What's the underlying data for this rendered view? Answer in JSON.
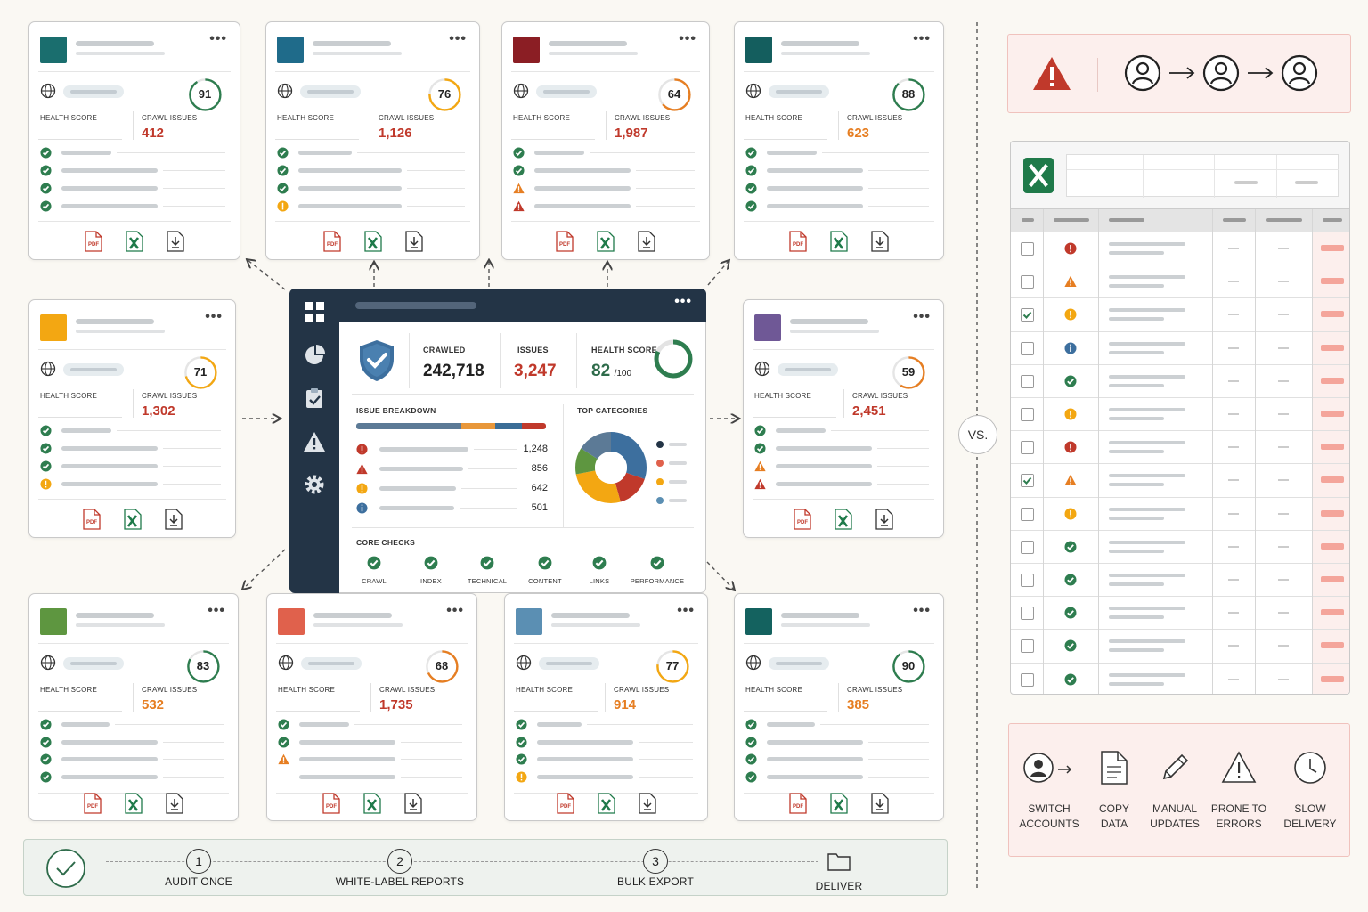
{
  "colors": {
    "green": "#2e7d4f",
    "red": "#c0392b",
    "orange": "#e67e22",
    "yellow": "#f3a712",
    "blue": "#3d6f9e",
    "navy": "#233446"
  },
  "project_cards": [
    {
      "logo_color": "#1a6e6e",
      "score": 91,
      "score_label": "HEALTH SCORE",
      "issues_label": "CRAWL ISSUES",
      "issues": "412",
      "issues_color": "#c0392b",
      "status": [
        "ok",
        "ok",
        "ok",
        "ok"
      ]
    },
    {
      "logo_color": "#1f6b8a",
      "score": 76,
      "score_label": "HEALTH SCORE",
      "issues_label": "CRAWL ISSUES",
      "issues": "1,126",
      "issues_color": "#c0392b",
      "status": [
        "ok",
        "ok",
        "ok",
        "info"
      ]
    },
    {
      "logo_color": "#8b1e24",
      "score": 64,
      "score_label": "HEALTH SCORE",
      "issues_label": "CRAWL ISSUES",
      "issues": "1,987",
      "issues_color": "#c0392b",
      "status": [
        "ok",
        "ok",
        "warn",
        "err"
      ]
    },
    {
      "logo_color": "#145e5e",
      "score": 88,
      "score_label": "HEALTH SCORE",
      "issues_label": "CRAWL ISSUES",
      "issues": "623",
      "issues_color": "#e67e22",
      "status": [
        "ok",
        "ok",
        "ok",
        "ok"
      ]
    },
    {
      "logo_color": "#f3a712",
      "score": 71,
      "score_label": "HEALTH SCORE",
      "issues_label": "CRAWL ISSUES",
      "issues": "1,302",
      "issues_color": "#c0392b",
      "status": [
        "ok",
        "ok",
        "ok",
        "info"
      ]
    },
    {
      "logo_color": "#6f5896",
      "score": 59,
      "score_label": "HEALTH SCORE",
      "issues_label": "CRAWL ISSUES",
      "issues": "2,451",
      "issues_color": "#c0392b",
      "status": [
        "ok",
        "ok",
        "warn",
        "err"
      ]
    },
    {
      "logo_color": "#5e9640",
      "score": 83,
      "score_label": "HEALTH SCORE",
      "issues_label": "CRAWL ISSUES",
      "issues": "532",
      "issues_color": "#e67e22",
      "status": [
        "ok",
        "ok",
        "ok",
        "ok"
      ]
    },
    {
      "logo_color": "#e0614c",
      "score": 68,
      "score_label": "HEALTH SCORE",
      "issues_label": "CRAWL ISSUES",
      "issues": "1,735",
      "issues_color": "#c0392b",
      "status": [
        "ok",
        "ok",
        "warn",
        "none"
      ]
    },
    {
      "logo_color": "#5b8fb3",
      "score": 77,
      "score_label": "HEALTH SCORE",
      "issues_label": "CRAWL ISSUES",
      "issues": "914",
      "issues_color": "#e67e22",
      "status": [
        "ok",
        "ok",
        "ok",
        "info"
      ]
    },
    {
      "logo_color": "#14625f",
      "score": 90,
      "score_label": "HEALTH SCORE",
      "issues_label": "CRAWL ISSUES",
      "issues": "385",
      "issues_color": "#e67e22",
      "status": [
        "ok",
        "ok",
        "ok",
        "ok"
      ]
    }
  ],
  "export_icons": [
    "pdf-icon",
    "excel-icon",
    "download-icon"
  ],
  "dashboard": {
    "crawled_label": "CRAWLED",
    "crawled": "242,718",
    "issues_label": "ISSUES",
    "issues": "3,247",
    "health_label": "HEALTH SCORE",
    "health": "82",
    "health_of": "/100",
    "health_fraction": 0.82,
    "breakdown_title": "ISSUE BREAKDOWN",
    "breakdown": [
      {
        "type": "error",
        "count": "1,248"
      },
      {
        "type": "warning",
        "count": "856"
      },
      {
        "type": "notice",
        "count": "642"
      },
      {
        "type": "info",
        "count": "501"
      }
    ],
    "categories_title": "TOP CATEGORIES",
    "core_title": "CORE CHECKS",
    "core_checks": [
      "CRAWL",
      "INDEX",
      "TECHNICAL",
      "CONTENT",
      "LINKS",
      "PERFORMANCE"
    ]
  },
  "comparison": {
    "vs": "VS."
  },
  "spreadsheet": {
    "rows": [
      "err",
      "warn",
      "info",
      "blue",
      "ok",
      "info",
      "err",
      "warn",
      "info",
      "ok",
      "ok",
      "ok",
      "ok",
      "ok"
    ],
    "checked": [
      false,
      false,
      true,
      false,
      false,
      false,
      false,
      true,
      false,
      false,
      false,
      false,
      false,
      false
    ]
  },
  "pain_points": [
    {
      "icon": "switch-accounts-icon",
      "line1": "SWITCH",
      "line2": "ACCOUNTS"
    },
    {
      "icon": "document-icon",
      "line1": "COPY",
      "line2": "DATA"
    },
    {
      "icon": "pencil-icon",
      "line1": "MANUAL",
      "line2": "UPDATES"
    },
    {
      "icon": "warning-icon",
      "line1": "PRONE TO",
      "line2": "ERRORS"
    },
    {
      "icon": "clock-icon",
      "line1": "SLOW",
      "line2": "DELIVERY"
    }
  ],
  "workflow": [
    {
      "num": "1",
      "label": "AUDIT ONCE"
    },
    {
      "num": "2",
      "label": "WHITE-LABEL REPORTS"
    },
    {
      "num": "3",
      "label": "BULK EXPORT"
    },
    {
      "num": "",
      "label": "DELIVER"
    }
  ]
}
